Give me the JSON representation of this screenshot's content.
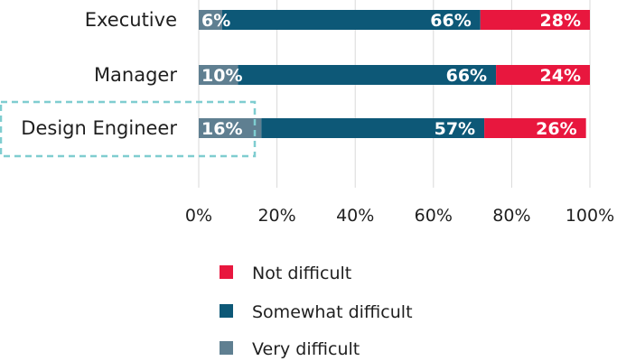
{
  "chart_data": {
    "type": "bar",
    "orientation": "horizontal",
    "stacked": true,
    "categories": [
      "Executive",
      "Manager",
      "Design Engineer"
    ],
    "series": [
      {
        "name": "Very difficult",
        "values": [
          6,
          10,
          16
        ],
        "labels": [
          "6%",
          "10%",
          "16%"
        ],
        "color": "#5f7f91"
      },
      {
        "name": "Somewhat difficult",
        "values": [
          66,
          66,
          57
        ],
        "labels": [
          "66%",
          "66%",
          "57%"
        ],
        "color": "#0d5877"
      },
      {
        "name": "Not difficult",
        "values": [
          28,
          24,
          26
        ],
        "labels": [
          "28%",
          "24%",
          "26%"
        ],
        "color": "#e8173e"
      }
    ],
    "xlim": [
      0,
      100
    ],
    "xticks": [
      0,
      20,
      40,
      60,
      80,
      100
    ],
    "xtick_labels": [
      "0%",
      "20%",
      "40%",
      "60%",
      "80%",
      "100%"
    ],
    "grid": true,
    "legend": {
      "placement": "bottom",
      "order": [
        "Not difficult",
        "Somewhat difficult",
        "Very difficult"
      ]
    },
    "highlighted_category": "Design Engineer",
    "highlight_color": "#7fcdd0"
  }
}
